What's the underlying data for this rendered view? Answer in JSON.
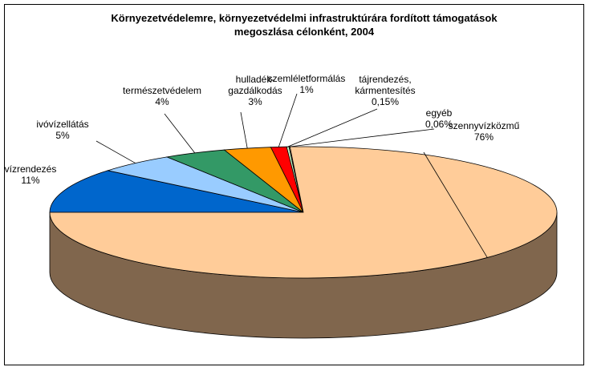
{
  "chart_data": {
    "type": "pie3d",
    "title": "Környezetvédelemre, környezetvédelmi infrastruktúrára fordított támogatások megoszlása célonként, 2004",
    "categories": [
      "vízrendezés",
      "ivóvízellátás",
      "természetvédelem",
      "hulladék-gazdálkodás",
      "szemléletformálás",
      "tájrendezés, kármentesítés",
      "egyéb",
      "szennyvízközmű"
    ],
    "values": [
      11,
      5,
      4,
      3,
      1,
      0.15,
      0.06,
      76
    ],
    "value_labels": [
      "11%",
      "5%",
      "4%",
      "3%",
      "1%",
      "0,15%",
      "0,06%",
      "76%"
    ],
    "colors": [
      "#0066CC",
      "#99CCFF",
      "#339966",
      "#FF9900",
      "#FF0000",
      "#CCFFCC",
      "#FFFFCC",
      "#FFCC99"
    ]
  }
}
